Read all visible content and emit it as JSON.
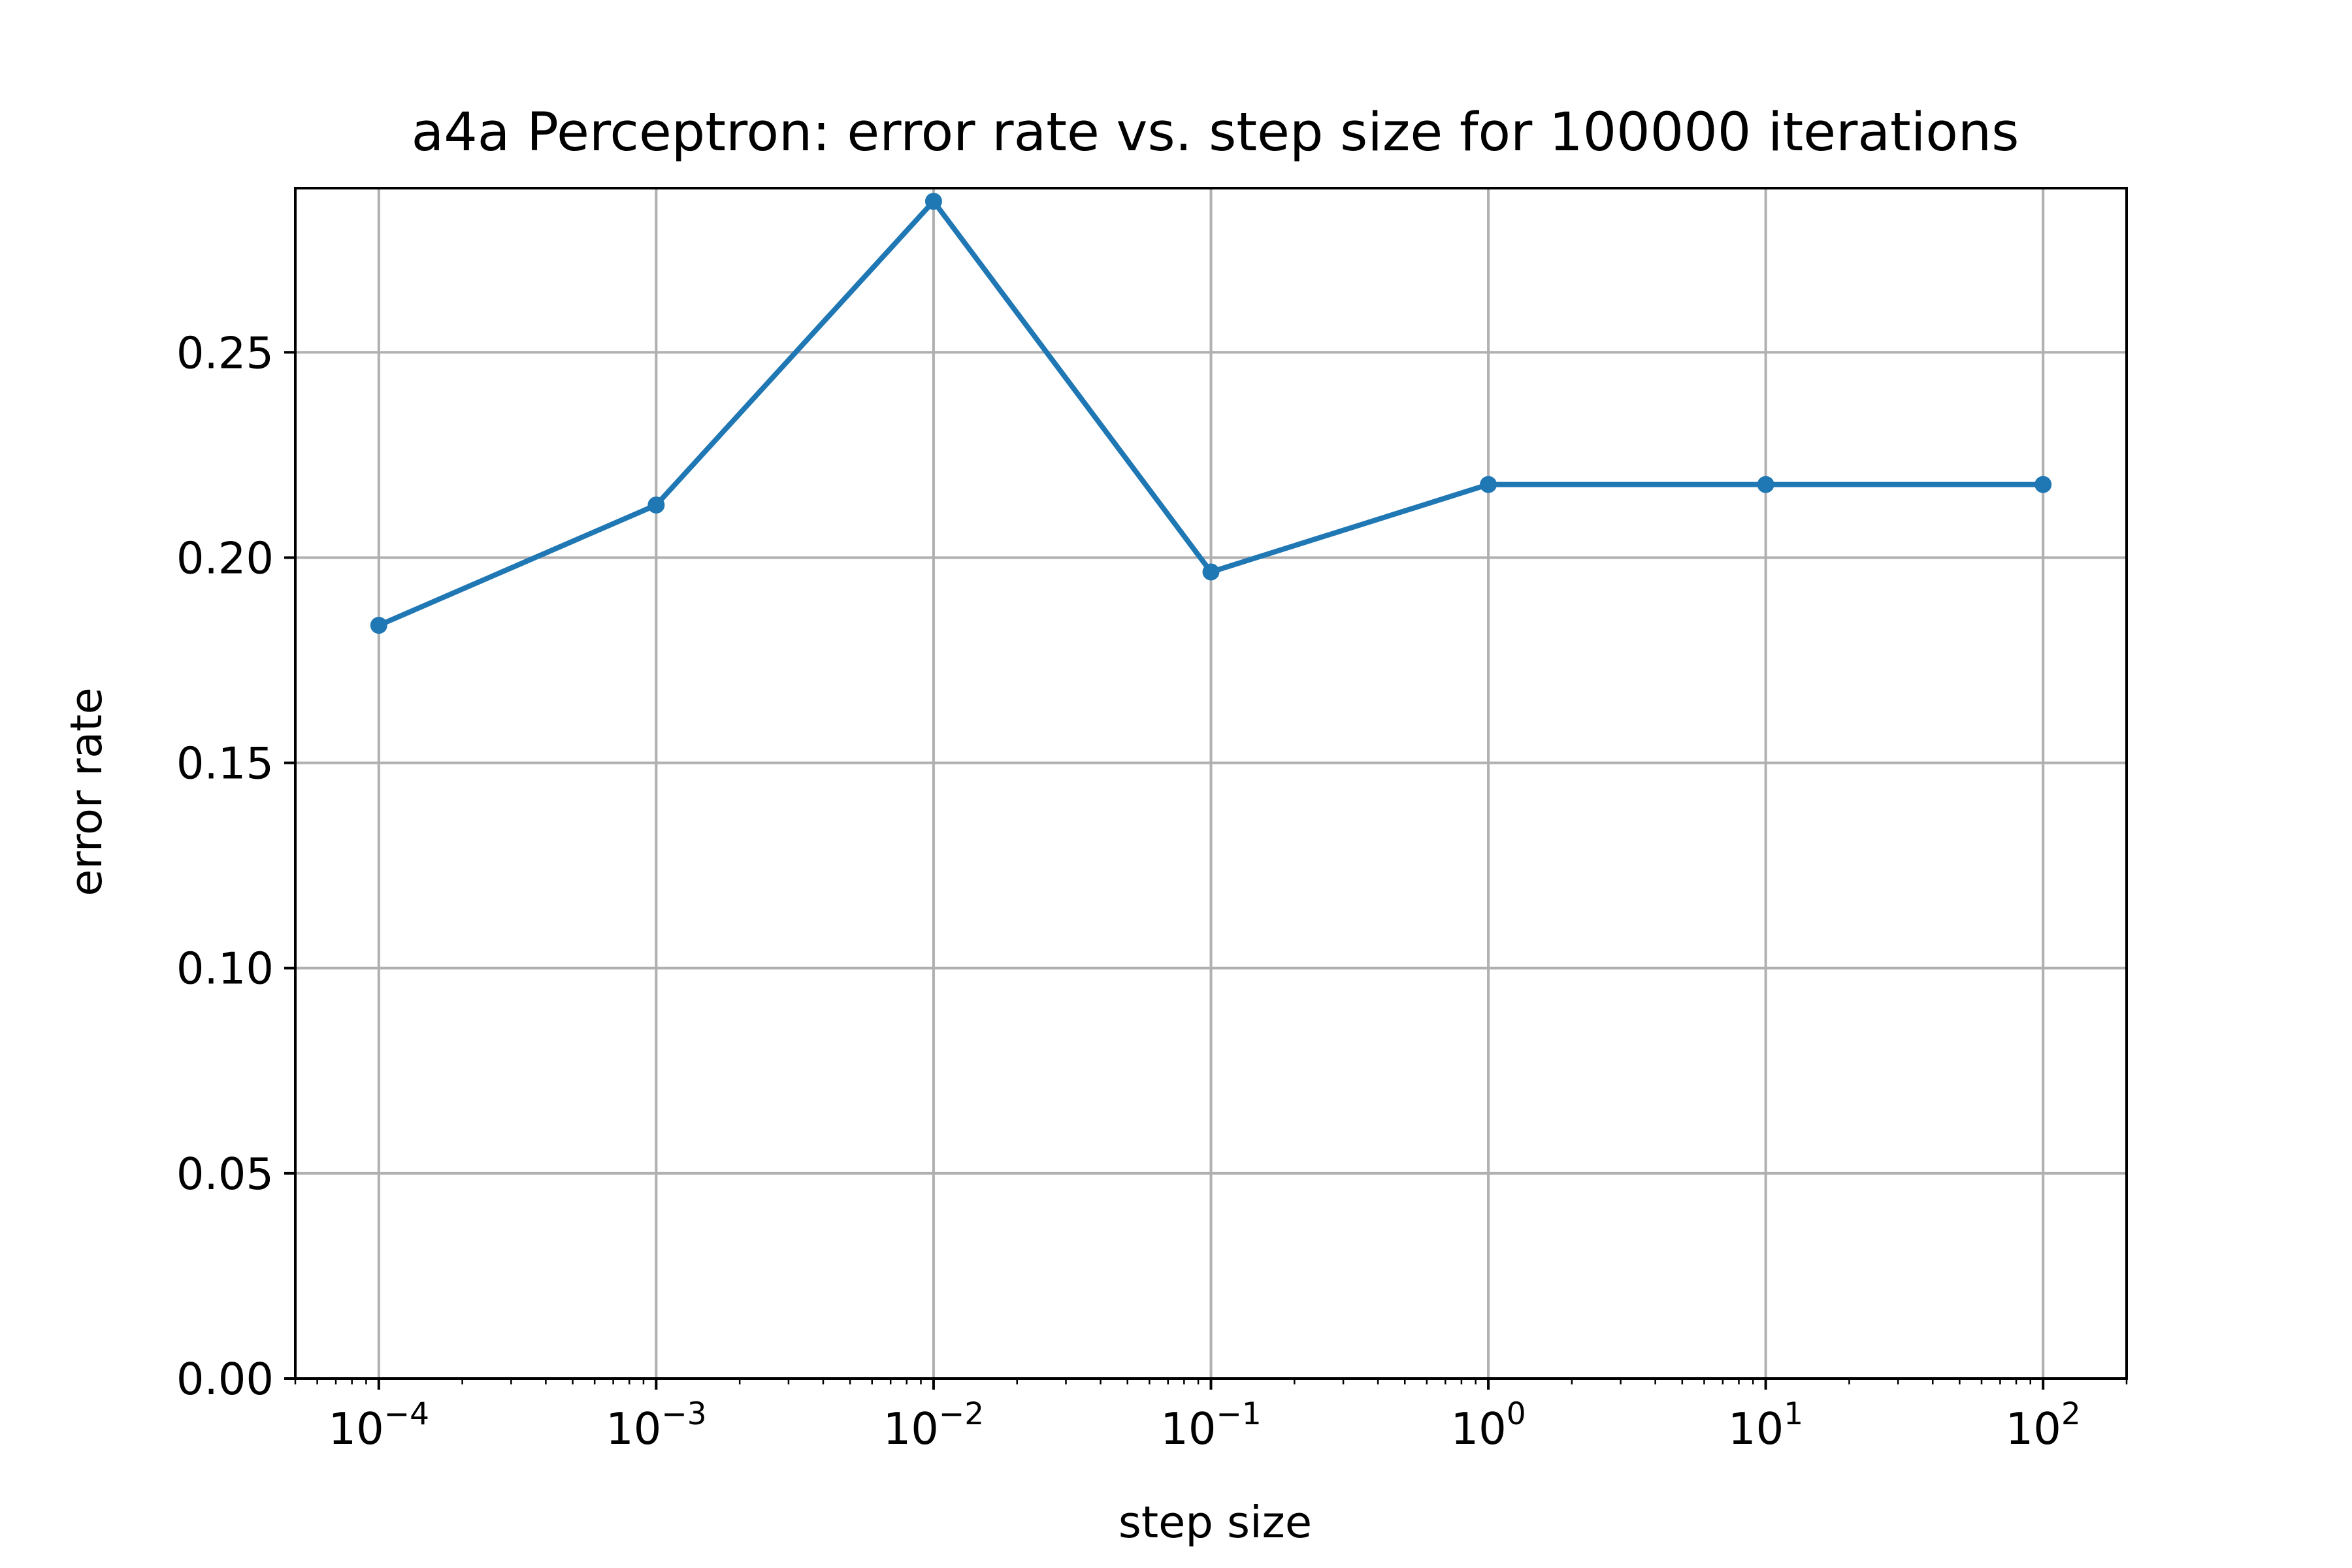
{
  "chart_data": {
    "type": "line",
    "title": "a4a Perceptron: error rate vs. step size for 100000 iterations",
    "xlabel": "step size",
    "ylabel": "error rate",
    "xscale": "log",
    "xlim": [
      5e-05,
      200
    ],
    "ylim": [
      0,
      0.29
    ],
    "grid": true,
    "x": [
      0.0001,
      0.001,
      0.01,
      0.1,
      1,
      10,
      100
    ],
    "series": [
      {
        "values": [
          0.1835,
          0.2128,
          0.2868,
          0.1965,
          0.2178,
          0.2178,
          0.2178
        ],
        "color": "#1f77b4",
        "marker": "circle"
      }
    ],
    "x_ticks": [
      {
        "value": 0.0001,
        "base": "10",
        "exp": "−4"
      },
      {
        "value": 0.001,
        "base": "10",
        "exp": "−3"
      },
      {
        "value": 0.01,
        "base": "10",
        "exp": "−2"
      },
      {
        "value": 0.1,
        "base": "10",
        "exp": "−1"
      },
      {
        "value": 1,
        "base": "10",
        "exp": "0"
      },
      {
        "value": 10,
        "base": "10",
        "exp": "1"
      },
      {
        "value": 100,
        "base": "10",
        "exp": "2"
      }
    ],
    "y_ticks": [
      {
        "value": 0,
        "label": "0.00"
      },
      {
        "value": 0.05,
        "label": "0.05"
      },
      {
        "value": 0.1,
        "label": "0.10"
      },
      {
        "value": 0.15,
        "label": "0.15"
      },
      {
        "value": 0.2,
        "label": "0.20"
      },
      {
        "value": 0.25,
        "label": "0.25"
      }
    ],
    "colors": {
      "grid": "#b0b0b0",
      "axes": "#000000"
    }
  }
}
